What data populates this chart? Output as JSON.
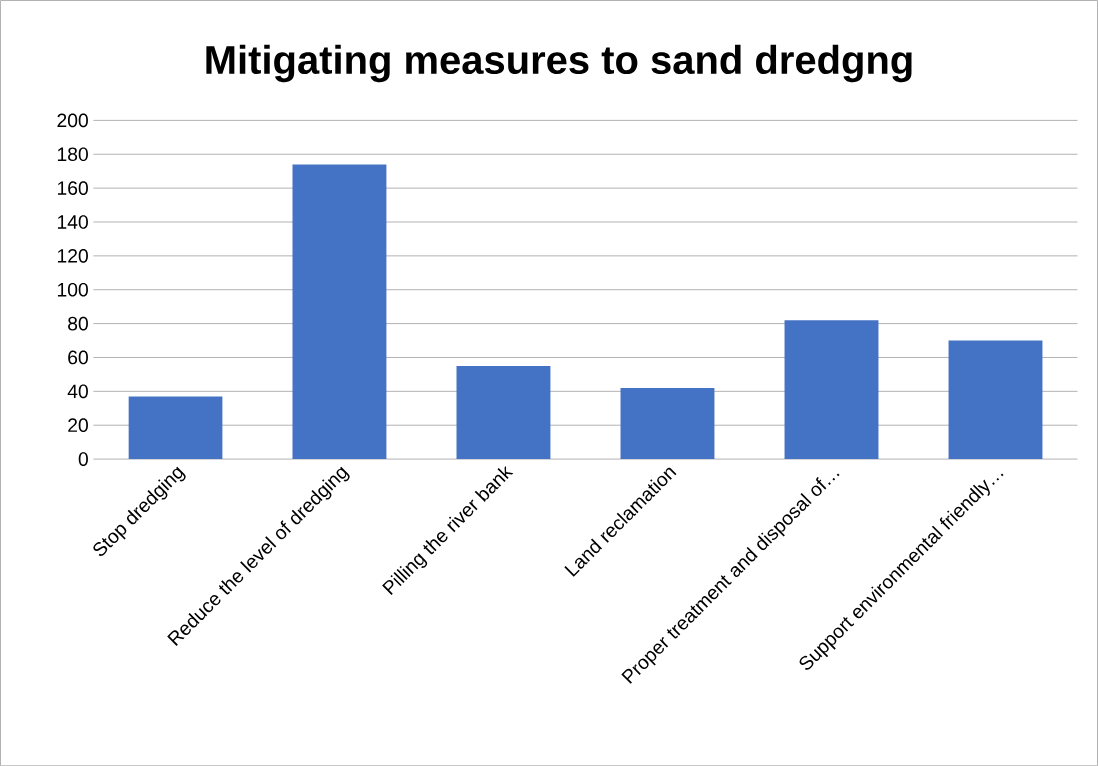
{
  "chart_data": {
    "type": "bar",
    "title": "Mitigating measures to sand dredgng",
    "categories": [
      "Stop dredging",
      "Reduce the level of dredging",
      "Pilling the river bank",
      "Land reclamation",
      "Proper treatment and disposal of…",
      "Support environmental friendly…"
    ],
    "values": [
      37,
      174,
      55,
      42,
      82,
      70
    ],
    "color": "#4472c4",
    "ylim": [
      0,
      200
    ],
    "yticks": [
      0,
      20,
      40,
      60,
      80,
      100,
      120,
      140,
      160,
      180,
      200
    ],
    "grid": "y"
  }
}
